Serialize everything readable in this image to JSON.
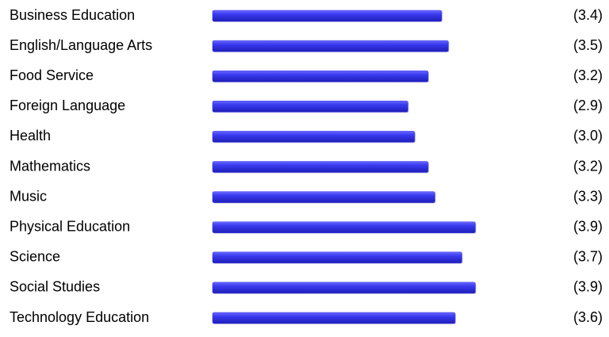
{
  "chart_data": {
    "type": "bar",
    "orientation": "horizontal",
    "categories": [
      "Business Education",
      "English/Language Arts",
      "Food Service",
      "Foreign Language",
      "Health",
      "Mathematics",
      "Music",
      "Physical Education",
      "Science",
      "Social Studies",
      "Technology Education"
    ],
    "values": [
      3.4,
      3.5,
      3.2,
      2.9,
      3.0,
      3.2,
      3.3,
      3.9,
      3.7,
      3.9,
      3.6
    ],
    "value_labels": [
      "(3.4)",
      "(3.5)",
      "(3.2)",
      "(2.9)",
      "(3.0)",
      "(3.2)",
      "(3.3)",
      "(3.9)",
      "(3.7)",
      "(3.9)",
      "(3.6)"
    ],
    "color": "#3a3af0",
    "xlim": [
      0,
      4
    ]
  }
}
